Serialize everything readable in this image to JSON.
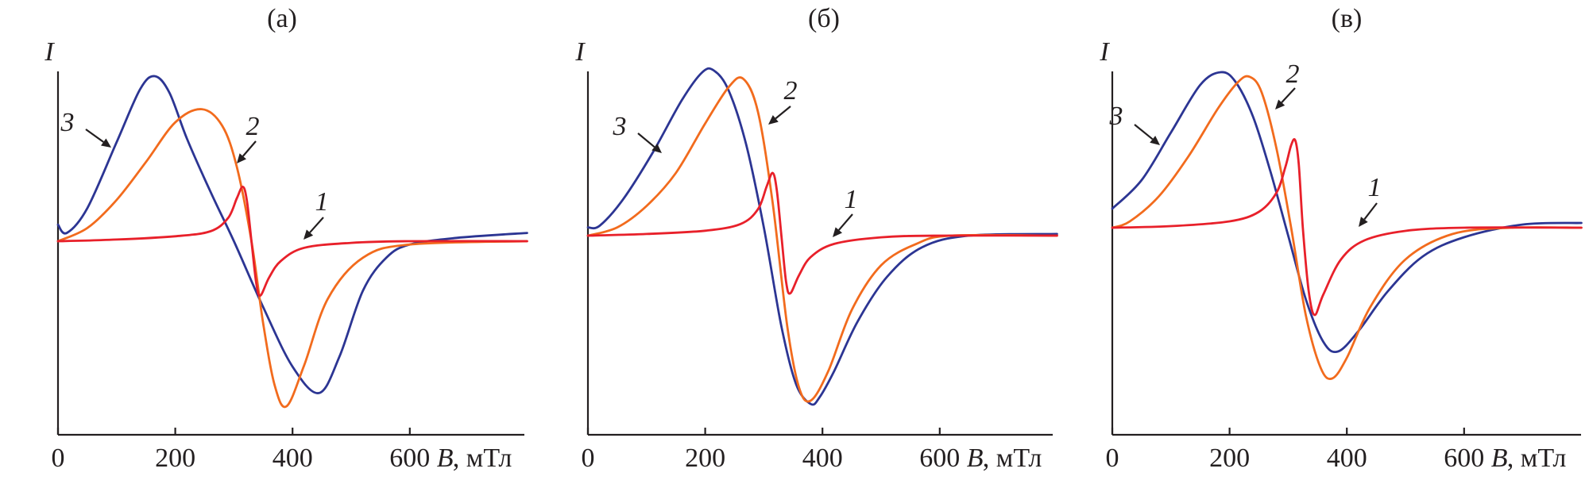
{
  "colors": {
    "series_1": "#e8202a",
    "series_2": "#f26b1d",
    "series_3": "#2c3593",
    "axis": "#231f20"
  },
  "chart_data": [
    {
      "type": "line",
      "title": "(а)",
      "ylabel": "I",
      "xlabel_var": "B",
      "xlabel_unit": ", мТл",
      "xlim": [
        0,
        800
      ],
      "ylim": [
        -1.05,
        1.05
      ],
      "x_ticks": [
        0,
        200,
        400,
        600
      ],
      "tick_labels": [
        "0",
        "200",
        "400",
        "600"
      ],
      "grid": false,
      "series": [
        {
          "name": "1",
          "x": [
            0,
            100,
            200,
            260,
            290,
            305,
            315,
            322,
            330,
            338,
            345,
            360,
            380,
            420,
            500,
            600,
            800
          ],
          "values": [
            0,
            0.01,
            0.03,
            0.06,
            0.14,
            0.26,
            0.33,
            0.25,
            0.0,
            -0.25,
            -0.33,
            -0.22,
            -0.12,
            -0.04,
            -0.01,
            0,
            0
          ]
        },
        {
          "name": "2",
          "x": [
            0,
            50,
            100,
            150,
            200,
            245,
            280,
            305,
            330,
            350,
            370,
            390,
            420,
            460,
            520,
            600,
            800
          ],
          "values": [
            0,
            0.08,
            0.25,
            0.48,
            0.72,
            0.8,
            0.7,
            0.45,
            0.0,
            -0.5,
            -0.88,
            -1.0,
            -0.75,
            -0.35,
            -0.1,
            -0.02,
            0
          ]
        },
        {
          "name": "3",
          "x": [
            0,
            15,
            50,
            100,
            140,
            165,
            190,
            220,
            260,
            300,
            350,
            400,
            445,
            480,
            520,
            560,
            600,
            680,
            800
          ],
          "values": [
            0.1,
            0.05,
            0.2,
            0.6,
            0.92,
            1.0,
            0.9,
            0.62,
            0.3,
            0.0,
            -0.4,
            -0.76,
            -0.92,
            -0.7,
            -0.3,
            -0.1,
            -0.02,
            0.02,
            0.05
          ]
        }
      ],
      "tags": {
        "series_1": "1",
        "series_2": "2",
        "series_3": "3"
      }
    },
    {
      "type": "line",
      "title": "(б)",
      "ylabel": "I",
      "xlabel_var": "B",
      "xlabel_unit": ", мТл",
      "xlim": [
        0,
        800
      ],
      "ylim": [
        -1.05,
        1.05
      ],
      "x_ticks": [
        0,
        200,
        400,
        600
      ],
      "tick_labels": [
        "0",
        "200",
        "400",
        "600"
      ],
      "grid": false,
      "series": [
        {
          "name": "1",
          "x": [
            0,
            100,
            200,
            260,
            290,
            305,
            315,
            322,
            330,
            338,
            345,
            360,
            380,
            420,
            500,
            600,
            800
          ],
          "values": [
            0,
            0.01,
            0.03,
            0.07,
            0.16,
            0.3,
            0.38,
            0.28,
            0.0,
            -0.28,
            -0.35,
            -0.24,
            -0.13,
            -0.05,
            -0.01,
            0,
            0
          ]
        },
        {
          "name": "2",
          "x": [
            0,
            50,
            100,
            150,
            200,
            240,
            265,
            290,
            315,
            340,
            360,
            380,
            410,
            450,
            500,
            560,
            620,
            800
          ],
          "values": [
            0,
            0.05,
            0.18,
            0.38,
            0.68,
            0.9,
            0.95,
            0.75,
            0.2,
            -0.55,
            -0.92,
            -1.0,
            -0.82,
            -0.45,
            -0.18,
            -0.05,
            0,
            0
          ]
        },
        {
          "name": "3",
          "x": [
            0,
            20,
            60,
            110,
            160,
            195,
            215,
            240,
            270,
            300,
            330,
            355,
            380,
            395,
            420,
            460,
            510,
            570,
            650,
            800
          ],
          "values": [
            0.05,
            0.06,
            0.22,
            0.5,
            0.82,
            0.99,
            1.0,
            0.88,
            0.55,
            0.05,
            -0.55,
            -0.9,
            -1.02,
            -0.98,
            -0.82,
            -0.52,
            -0.25,
            -0.07,
            0,
            0.01
          ]
        }
      ],
      "tags": {
        "series_1": "1",
        "series_2": "2",
        "series_3": "3"
      }
    },
    {
      "type": "line",
      "title": "(в)",
      "ylabel": "I",
      "xlabel_var": "B",
      "xlabel_unit": ", мТл",
      "xlim": [
        0,
        800
      ],
      "ylim": [
        -1.05,
        1.05
      ],
      "x_ticks": [
        0,
        200,
        400,
        600
      ],
      "tick_labels": [
        "0",
        "200",
        "400",
        "600"
      ],
      "grid": false,
      "series": [
        {
          "name": "1",
          "x": [
            0,
            100,
            200,
            250,
            280,
            295,
            305,
            312,
            318,
            325,
            335,
            345,
            360,
            390,
            430,
            500,
            600,
            800
          ],
          "values": [
            0,
            0.01,
            0.04,
            0.1,
            0.22,
            0.38,
            0.52,
            0.55,
            0.4,
            0.0,
            -0.4,
            -0.55,
            -0.42,
            -0.2,
            -0.08,
            -0.02,
            0,
            0
          ]
        },
        {
          "name": "2",
          "x": [
            0,
            30,
            80,
            130,
            180,
            215,
            235,
            255,
            280,
            305,
            330,
            355,
            375,
            400,
            440,
            500,
            580,
            680,
            800
          ],
          "values": [
            0,
            0.04,
            0.2,
            0.45,
            0.75,
            0.92,
            0.95,
            0.85,
            0.5,
            0.0,
            -0.55,
            -0.88,
            -0.95,
            -0.82,
            -0.5,
            -0.2,
            -0.04,
            0,
            0
          ]
        },
        {
          "name": "3",
          "x": [
            0,
            50,
            100,
            150,
            185,
            210,
            240,
            270,
            300,
            330,
            360,
            385,
            420,
            470,
            530,
            600,
            700,
            800
          ],
          "values": [
            0.12,
            0.3,
            0.6,
            0.9,
            0.98,
            0.92,
            0.7,
            0.35,
            -0.05,
            -0.45,
            -0.72,
            -0.78,
            -0.65,
            -0.4,
            -0.18,
            -0.06,
            0.02,
            0.03
          ]
        }
      ],
      "tags": {
        "series_1": "1",
        "series_2": "2",
        "series_3": "3"
      }
    }
  ]
}
